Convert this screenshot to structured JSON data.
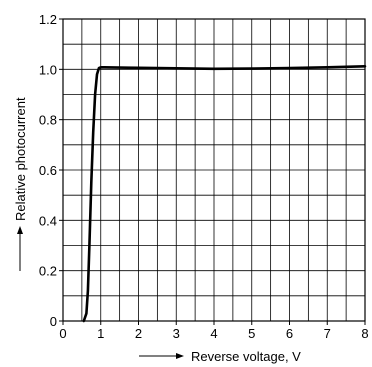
{
  "chart_data": {
    "type": "line",
    "title": "",
    "xlabel": "Reverse voltage, V",
    "ylabel": "Relative photocurrent",
    "xlim": [
      0,
      8
    ],
    "ylim": [
      0,
      1.2
    ],
    "x_ticks": [
      "0",
      "1",
      "2",
      "3",
      "4",
      "5",
      "6",
      "7",
      "8"
    ],
    "y_ticks": [
      "0",
      "0.2",
      "0.4",
      "0.6",
      "0.8",
      "1.0",
      "1.2"
    ],
    "grid": true,
    "legend": "none",
    "line_color": "#000000",
    "series": [
      {
        "x": [
          0.55,
          0.62,
          0.66,
          0.7,
          0.75,
          0.8,
          0.85,
          0.9,
          0.95,
          1.0,
          1.1,
          1.5,
          2.0,
          3.0,
          4.0,
          5.0,
          6.0,
          7.0,
          8.0
        ],
        "y": [
          0.0,
          0.03,
          0.12,
          0.3,
          0.55,
          0.75,
          0.9,
          0.98,
          1.005,
          1.008,
          1.008,
          1.007,
          1.006,
          1.004,
          1.002,
          1.003,
          1.005,
          1.008,
          1.012
        ]
      }
    ]
  }
}
